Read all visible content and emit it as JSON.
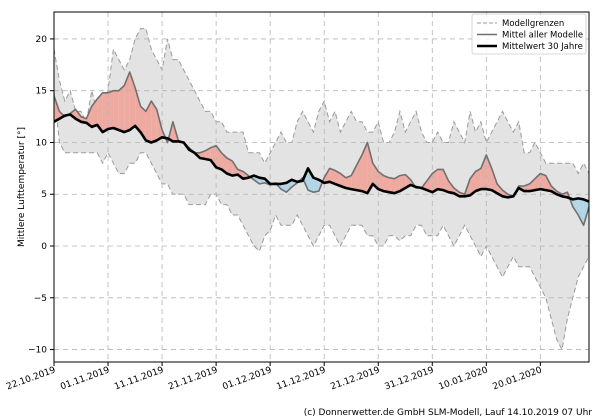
{
  "credit": "(c) Donnerwetter.de GmbH SLM-Modell, Lauf 14.10.2019 07 Uhr",
  "chart_data": {
    "type": "line",
    "title": "",
    "ylabel": "Mittlere Lufttemperatur [°]",
    "xlabel": "",
    "ylim": [
      -11.2,
      22.6
    ],
    "xlim": [
      0,
      99
    ],
    "grid": true,
    "legend_position": "top-right",
    "yticks": [
      -10,
      -5,
      0,
      5,
      10,
      15,
      20
    ],
    "xticks": [
      {
        "label": "22.10.2019",
        "x": 0
      },
      {
        "label": "01.11.2019",
        "x": 10
      },
      {
        "label": "11.11.2019",
        "x": 20
      },
      {
        "label": "21.11.2019",
        "x": 30
      },
      {
        "label": "01.12.2019",
        "x": 40
      },
      {
        "label": "11.12.2019",
        "x": 50
      },
      {
        "label": "21.12.2019",
        "x": 60
      },
      {
        "label": "31.12.2019",
        "x": 70
      },
      {
        "label": "10.01.2020",
        "x": 80
      },
      {
        "label": "20.01.2020",
        "x": 90
      }
    ],
    "colors": {
      "envelope_fill": "#e3e3e3",
      "envelope_line": "#9a9a9a",
      "model_mean": "#707070",
      "climatology": "#000000",
      "warm_fill": "#eeaaa0",
      "cold_fill": "#b3d6e6",
      "grid": "#b5b5b5"
    },
    "series": [
      {
        "name": "Modellgrenzen",
        "role": "band",
        "upper": [
          19,
          16,
          14,
          15,
          13,
          13,
          12,
          15,
          13,
          14,
          15,
          19,
          18,
          17,
          18,
          20,
          21,
          21,
          19,
          18,
          17,
          20,
          18,
          18,
          17,
          16,
          15,
          14,
          13,
          13,
          12,
          12,
          11,
          11,
          11,
          11,
          9,
          9,
          9,
          8,
          9,
          10,
          11,
          10,
          10,
          12,
          13,
          12,
          11,
          13,
          14,
          12,
          13,
          11,
          12,
          13,
          12,
          12,
          11,
          11,
          12,
          10,
          10,
          11,
          13,
          11,
          12,
          13,
          11,
          10,
          10,
          11,
          10,
          10,
          12,
          11,
          10,
          13,
          11,
          12,
          10,
          11,
          12,
          13,
          12,
          11,
          12,
          9,
          9,
          10,
          9,
          8,
          8,
          8,
          8,
          8,
          8,
          7,
          8,
          7
        ],
        "lower": [
          15,
          10,
          9,
          9,
          9,
          9,
          9,
          9,
          9,
          8,
          9,
          8,
          7,
          7,
          8,
          8,
          9,
          9,
          8,
          7,
          6,
          6,
          5,
          5,
          5,
          4,
          4,
          4,
          4,
          5,
          5,
          4,
          4,
          3,
          3,
          2,
          1,
          0,
          -0.5,
          1,
          1.5,
          3,
          2,
          2,
          2,
          3,
          2,
          1,
          0,
          1,
          2,
          2,
          1,
          0,
          1,
          2,
          2,
          2,
          1,
          1,
          0,
          0,
          1,
          1,
          0.5,
          1,
          1,
          2,
          2,
          1,
          1,
          1,
          2,
          1,
          0,
          1,
          2,
          1,
          0,
          -1,
          0,
          -1,
          -2,
          -3,
          -2,
          -1,
          -2,
          -2,
          -2,
          -3,
          -4,
          -5,
          -7,
          -9,
          -10,
          -7,
          -5,
          -3,
          -2,
          -1
        ]
      },
      {
        "name": "Mittel aller Modelle",
        "values": [
          14.5,
          13.0,
          12.5,
          12.8,
          13.2,
          12.5,
          12.3,
          13.5,
          14.2,
          14.8,
          14.8,
          15.0,
          15.0,
          15.5,
          16.8,
          15.3,
          13.5,
          13.0,
          14.0,
          13.2,
          11.2,
          10.0,
          12.0,
          10.2,
          10.0,
          9.5,
          9.0,
          9.0,
          9.2,
          9.5,
          9.7,
          9.0,
          8.5,
          8.2,
          7.4,
          7.2,
          6.8,
          6.4,
          6.0,
          6.1,
          5.9,
          6.1,
          5.5,
          5.2,
          5.7,
          6.1,
          6.6,
          5.4,
          5.2,
          5.3,
          6.6,
          7.5,
          7.3,
          7.0,
          6.6,
          6.8,
          7.8,
          8.8,
          10.0,
          8.0,
          7.2,
          6.8,
          6.6,
          6.5,
          6.8,
          6.9,
          6.4,
          5.6,
          5.6,
          6.3,
          7.0,
          7.4,
          7.4,
          6.3,
          5.6,
          5.2,
          5.0,
          6.5,
          7.2,
          7.5,
          8.8,
          7.5,
          6.0,
          5.4,
          5.0,
          4.8,
          5.8,
          5.8,
          6.0,
          6.5,
          7.0,
          6.8,
          5.8,
          5.3,
          5.0,
          5.2,
          3.8,
          3.0,
          2.0,
          3.8
        ]
      },
      {
        "name": "Mittelwert 30 Jahre",
        "values": [
          12.0,
          12.3,
          12.6,
          12.7,
          12.3,
          12.0,
          11.9,
          11.5,
          11.7,
          11.0,
          11.3,
          11.4,
          11.2,
          11.0,
          11.2,
          11.6,
          11.0,
          10.2,
          10.0,
          10.2,
          10.5,
          10.4,
          10.1,
          10.1,
          10.0,
          9.3,
          9.0,
          8.5,
          8.4,
          8.3,
          7.6,
          7.4,
          7.0,
          6.8,
          6.9,
          6.5,
          6.6,
          6.8,
          6.6,
          6.5,
          6.0,
          6.0,
          6.0,
          6.1,
          6.4,
          6.2,
          6.3,
          7.5,
          6.6,
          6.4,
          6.1,
          6.2,
          6.0,
          5.8,
          5.6,
          5.5,
          5.4,
          5.3,
          5.1,
          6.0,
          5.5,
          5.3,
          5.2,
          5.1,
          5.3,
          5.6,
          5.9,
          5.7,
          5.6,
          5.4,
          5.2,
          5.5,
          5.4,
          5.2,
          5.1,
          4.8,
          4.8,
          4.9,
          5.3,
          5.5,
          5.5,
          5.4,
          5.1,
          4.8,
          4.7,
          4.8,
          5.6,
          5.3,
          5.3,
          5.4,
          5.5,
          5.4,
          5.3,
          5.0,
          4.8,
          4.7,
          4.5,
          4.6,
          4.5,
          4.3
        ]
      }
    ]
  }
}
